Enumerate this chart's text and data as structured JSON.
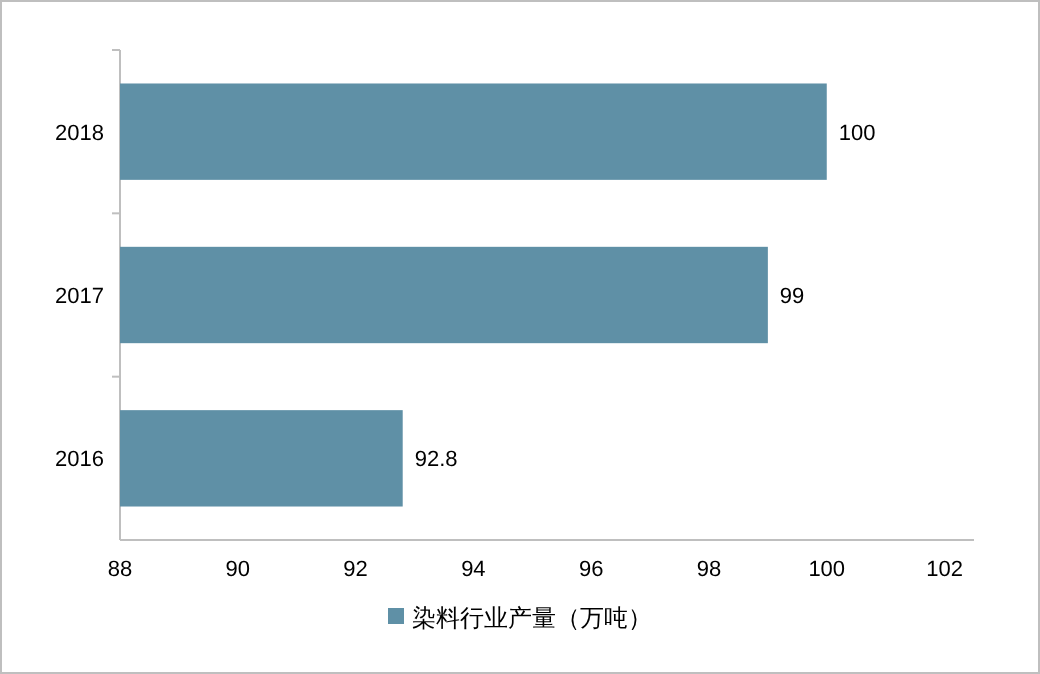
{
  "chart_data": {
    "type": "bar",
    "orientation": "horizontal",
    "categories": [
      "2018",
      "2017",
      "2016"
    ],
    "series": [
      {
        "name": "染料行业产量（万吨）",
        "color": "#5f90a6",
        "values": [
          100,
          99,
          92.8
        ]
      }
    ],
    "xlim": [
      88,
      102.5
    ],
    "xticks": [
      88,
      90,
      92,
      94,
      96,
      98,
      100,
      102
    ],
    "data_labels": true,
    "legend": "bottom",
    "grid": false
  }
}
